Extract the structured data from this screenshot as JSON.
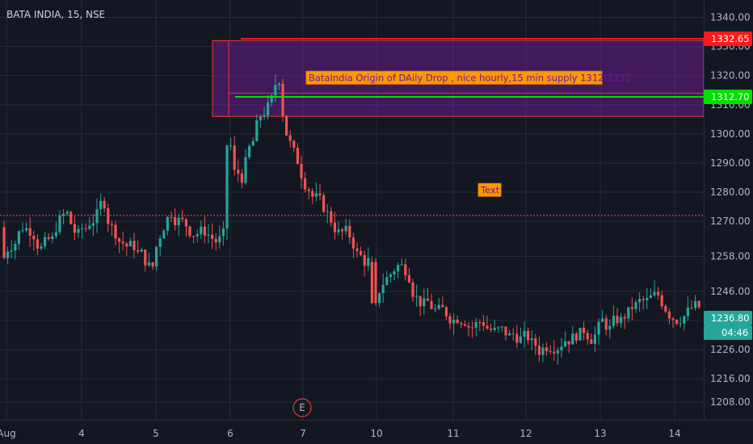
{
  "header": {
    "title": "BATA INDIA, 15, NSE"
  },
  "chart_data": {
    "type": "candlestick",
    "y_ticks": [
      1340,
      1330,
      1320,
      1310,
      1300,
      1290,
      1280,
      1270,
      1258,
      1246,
      1236,
      1226,
      1216,
      1208
    ],
    "y_tick_labels": [
      "1340.00",
      "1330.00",
      "1320.00",
      "1310.00",
      "1300.00",
      "1290.00",
      "1280.00",
      "1270.00",
      "1258.00",
      "1246.00",
      "1236.00",
      "1226.00",
      "1216.00",
      "1208.00"
    ],
    "x_ticks": [
      {
        "label": "Aug",
        "index": 0
      },
      {
        "label": "4",
        "index": 1
      },
      {
        "label": "5",
        "index": 2
      },
      {
        "label": "6",
        "index": 3
      },
      {
        "label": "7",
        "index": 4
      },
      {
        "label": "10",
        "index": 5
      },
      {
        "label": "11",
        "index": 6
      },
      {
        "label": "12",
        "index": 7
      },
      {
        "label": "13",
        "index": 8
      },
      {
        "label": "14",
        "index": 9
      }
    ],
    "price_labels": [
      {
        "text": "1332.65",
        "value": 1332.65,
        "color": "#ff1a1a"
      },
      {
        "text": "1312.70",
        "value": 1312.7,
        "color": "#00e000"
      },
      {
        "text": "1236.80",
        "value": 1236.8,
        "color": "#26a69a"
      }
    ],
    "countdown": "04:46",
    "supply_zone": {
      "top": 1332.0,
      "bottom": 1306.0
    },
    "resistance_line": 1332.65,
    "support_line": 1312.7,
    "dotted_line": 1272.0,
    "annotations": [
      {
        "text": "BataIndia  Origin of DAily Drop , nice hourly,15 min supply 1312-1332"
      },
      {
        "text": "Text"
      }
    ],
    "event_marker": "E",
    "session_closes": [
      [
        1268,
        1272,
        1268,
        1260
      ],
      [
        1262,
        1276,
        1272,
        1262
      ],
      [
        1268,
        1275,
        1278,
        1264
      ],
      [
        1262,
        1260,
        1256,
        1252
      ],
      [
        1274,
        1278,
        1272,
        1266
      ],
      [
        1268,
        1266,
        1262,
        1264
      ],
      [
        1268,
        1285,
        1300,
        1310
      ],
      [
        1312,
        1325,
        1290,
        1284
      ],
      [
        1282,
        1275,
        1270,
        1266
      ],
      [
        1264,
        1260,
        1254,
        1258
      ],
      [
        1256,
        1254,
        1258,
        1253
      ],
      [
        1242,
        1240,
        1238,
        1236
      ],
      [
        1238,
        1240,
        1234,
        1236
      ],
      [
        1232,
        1230,
        1229,
        1231
      ],
      [
        1228,
        1224,
        1230,
        1232
      ],
      [
        1234,
        1232,
        1233,
        1232
      ],
      [
        1236,
        1232,
        1236,
        1240
      ],
      [
        1242,
        1241,
        1243,
        1240
      ],
      [
        1238,
        1242,
        1240,
        1236.8
      ]
    ]
  }
}
